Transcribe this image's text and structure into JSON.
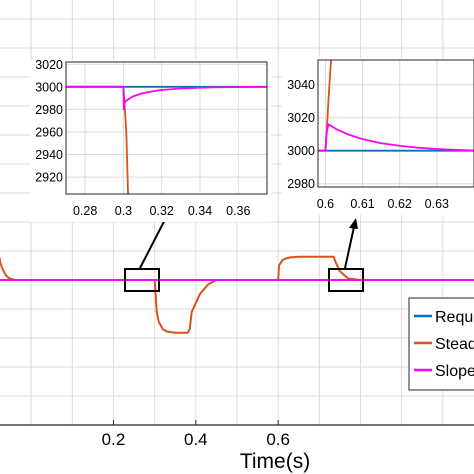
{
  "chart_data": [
    {
      "type": "line",
      "id": "main",
      "xlabel": "Time(s)",
      "xlim": [
        -0.1,
        1.1
      ],
      "ylim": [
        2500,
        4000
      ],
      "xticks": [
        "0.2",
        "0.4",
        "0.6"
      ],
      "xtick_values": [
        0.2,
        0.4,
        0.6
      ],
      "grid": true,
      "legend": {
        "placement": "lower-right",
        "entries": [
          "Requ",
          "Stead",
          "Slope"
        ]
      },
      "series": [
        {
          "name": "Requ",
          "color": "#0072bd",
          "x": [
            -0.1,
            1.1
          ],
          "y": [
            3000,
            3000
          ]
        },
        {
          "name": "Stead",
          "color": "#d95319",
          "x": [
            -0.1,
            -0.09,
            -0.08,
            -0.075,
            -0.07,
            -0.065,
            -0.06,
            -0.055,
            -0.05,
            -0.04,
            -0.03,
            -0.02,
            -0.005,
            0.0,
            0.3,
            0.305,
            0.31,
            0.32,
            0.33,
            0.35,
            0.38,
            0.38,
            0.385,
            0.39,
            0.41,
            0.43,
            0.45,
            0.6,
            0.602,
            0.61,
            0.62,
            0.63,
            0.65,
            0.68,
            0.735,
            0.735,
            0.74,
            0.75,
            0.77,
            0.8
          ],
          "y": [
            3360,
            3180,
            3100,
            3060,
            3040,
            3025,
            3014,
            3008,
            3004,
            3001,
            3000,
            3000,
            3000,
            3000,
            3000,
            2890,
            2855,
            2830,
            2822,
            2818,
            2818,
            2818,
            2830,
            2890,
            2952,
            2985,
            3000,
            3000,
            3050,
            3068,
            3075,
            3078,
            3080,
            3080,
            3080,
            3080,
            3060,
            3030,
            3005,
            3000
          ]
        },
        {
          "name": "Slope",
          "color": "#ff00ff",
          "x": [
            -0.1,
            1.1
          ],
          "y": [
            3000,
            3000
          ]
        }
      ]
    },
    {
      "type": "line",
      "id": "inset-left",
      "xlim": [
        0.27,
        0.375
      ],
      "ylim": [
        2905,
        3022
      ],
      "xticks": [
        "0.28",
        "0.3",
        "0.32",
        "0.34",
        "0.36"
      ],
      "xtick_values": [
        0.28,
        0.3,
        0.32,
        0.34,
        0.36
      ],
      "yticks": [
        "3020",
        "3000",
        "2980",
        "2960",
        "2940",
        "2920"
      ],
      "ytick_values": [
        3020,
        3000,
        2980,
        2960,
        2940,
        2920
      ],
      "grid": true,
      "series": [
        {
          "name": "Requ",
          "color": "#0072bd",
          "x": [
            0.27,
            0.375
          ],
          "y": [
            3000,
            3000
          ]
        },
        {
          "name": "Stead",
          "color": "#d95319",
          "x": [
            0.27,
            0.3,
            0.3001,
            0.3015,
            0.302,
            0.3025
          ],
          "y": [
            3000,
            3000,
            2998,
            2960,
            2930,
            2900
          ]
        },
        {
          "name": "Slope",
          "color": "#ff00ff",
          "x": [
            0.27,
            0.3,
            0.3002,
            0.3008,
            0.305,
            0.31,
            0.315,
            0.32,
            0.33,
            0.34,
            0.35,
            0.36,
            0.375
          ],
          "y": [
            3000,
            3000,
            2980,
            2987,
            2991.5,
            2994.3,
            2996,
            2997.2,
            2998.5,
            2999.2,
            2999.6,
            2999.8,
            3000
          ]
        }
      ]
    },
    {
      "type": "line",
      "id": "inset-right",
      "xlim": [
        0.598,
        0.64
      ],
      "ylim": [
        2978,
        3055
      ],
      "xticks": [
        "0.6",
        "0.61",
        "0.62",
        "0.63"
      ],
      "xtick_values": [
        0.6,
        0.61,
        0.62,
        0.63
      ],
      "yticks": [
        "3040",
        "3020",
        "3000",
        "2980"
      ],
      "ytick_values": [
        3040,
        3020,
        3000,
        2980
      ],
      "grid": true,
      "series": [
        {
          "name": "Requ",
          "color": "#0072bd",
          "x": [
            0.598,
            0.64
          ],
          "y": [
            3000,
            3000
          ]
        },
        {
          "name": "Stead",
          "color": "#d95319",
          "x": [
            0.598,
            0.6,
            0.6003,
            0.6008,
            0.6013,
            0.6017
          ],
          "y": [
            3000,
            3000,
            3010,
            3030,
            3048,
            3060
          ]
        },
        {
          "name": "Slope",
          "color": "#ff00ff",
          "x": [
            0.598,
            0.6,
            0.6003,
            0.6008,
            0.603,
            0.606,
            0.61,
            0.615,
            0.62,
            0.625,
            0.63,
            0.635,
            0.64
          ],
          "y": [
            3000,
            3000,
            3010,
            3016,
            3013,
            3010,
            3007,
            3004.5,
            3003,
            3001.8,
            3001,
            3000.5,
            3000.2
          ]
        }
      ]
    }
  ]
}
